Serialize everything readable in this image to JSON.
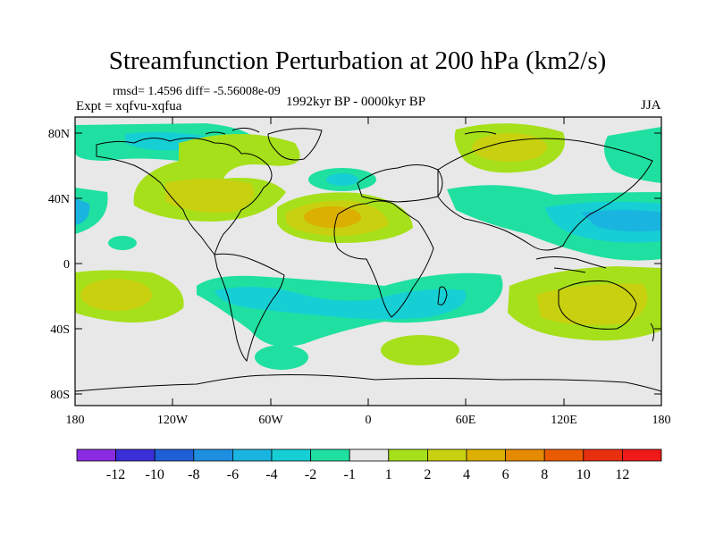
{
  "title": "Streamfunction Perturbation at 200 hPa (km2/s)",
  "stats": "rmsd= 1.4596 diff= -5.56008e-09",
  "experiment": "Expt = xqfvu-xqfua",
  "period": "1992kyr BP - 0000kyr BP",
  "season": "JJA",
  "map": {
    "lat_ticks": [
      "80N",
      "40N",
      "0",
      "40S",
      "80S"
    ],
    "lon_ticks": [
      "180",
      "120W",
      "60W",
      "0",
      "60E",
      "120E",
      "180"
    ]
  },
  "colorbar": {
    "labels": [
      "-12",
      "-10",
      "-8",
      "-6",
      "-4",
      "-2",
      "-1",
      "1",
      "2",
      "4",
      "6",
      "8",
      "10",
      "12"
    ],
    "colors": [
      "#8a2be2",
      "#3a2fd8",
      "#1e5fd6",
      "#1e8fe0",
      "#1ab4e0",
      "#16cfd4",
      "#1fe0a0",
      "#e8e8e8",
      "#a6e01a",
      "#c8d010",
      "#dcb000",
      "#e68a00",
      "#ea5a00",
      "#e83010",
      "#ee1a1a"
    ]
  },
  "colors": {
    "ocean_neutral": "#e8e8e8",
    "coast": "#000000"
  }
}
